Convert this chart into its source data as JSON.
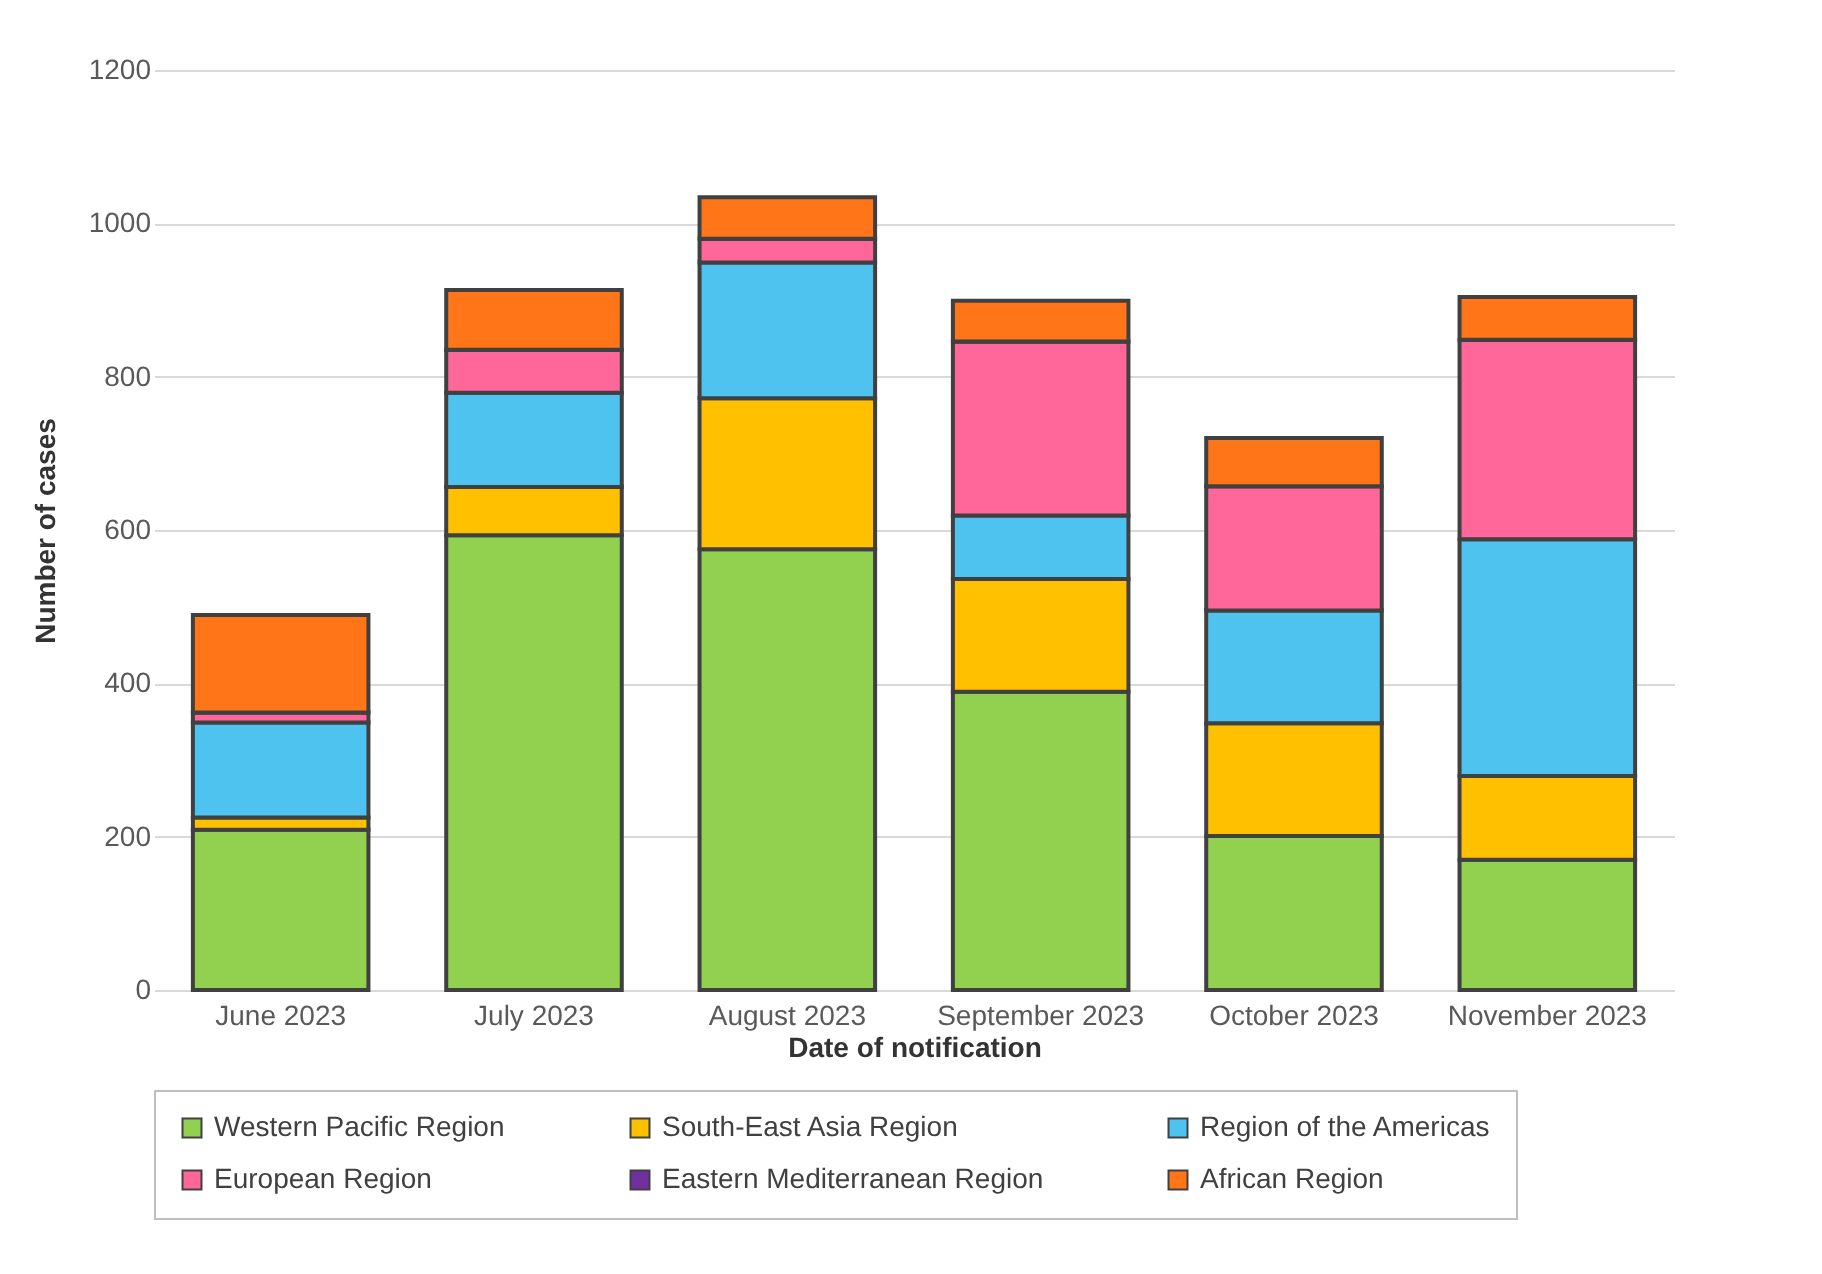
{
  "chart_data": {
    "type": "bar",
    "stacked": true,
    "xlabel": "Date of notification",
    "ylabel": "Number of cases",
    "categories": [
      "June 2023",
      "July 2023",
      "August 2023",
      "September 2023",
      "October 2023",
      "November 2023"
    ],
    "ylim": [
      0,
      1200
    ],
    "yticks": [
      0,
      200,
      400,
      600,
      800,
      1000,
      1200
    ],
    "grid": "y",
    "legend": "bottom",
    "series": [
      {
        "name": "Western Pacific Region",
        "color": "#92d050",
        "values": [
          209,
          593,
          575,
          389,
          201,
          170
        ]
      },
      {
        "name": "South-East Asia Region",
        "color": "#ffc000",
        "values": [
          16,
          63,
          197,
          147,
          147,
          109
        ]
      },
      {
        "name": "Region of the Americas",
        "color": "#4fc3ef",
        "values": [
          124,
          123,
          177,
          83,
          147,
          309
        ]
      },
      {
        "name": "European Region",
        "color": "#ff6699",
        "values": [
          13,
          56,
          31,
          227,
          162,
          260
        ]
      },
      {
        "name": "Eastern Mediterranean Region",
        "color": "#7030a0",
        "values": [
          0,
          0,
          0,
          0,
          0,
          0
        ]
      },
      {
        "name": "African Region",
        "color": "#ff7518",
        "values": [
          127,
          78,
          54,
          53,
          63,
          56
        ]
      }
    ]
  }
}
